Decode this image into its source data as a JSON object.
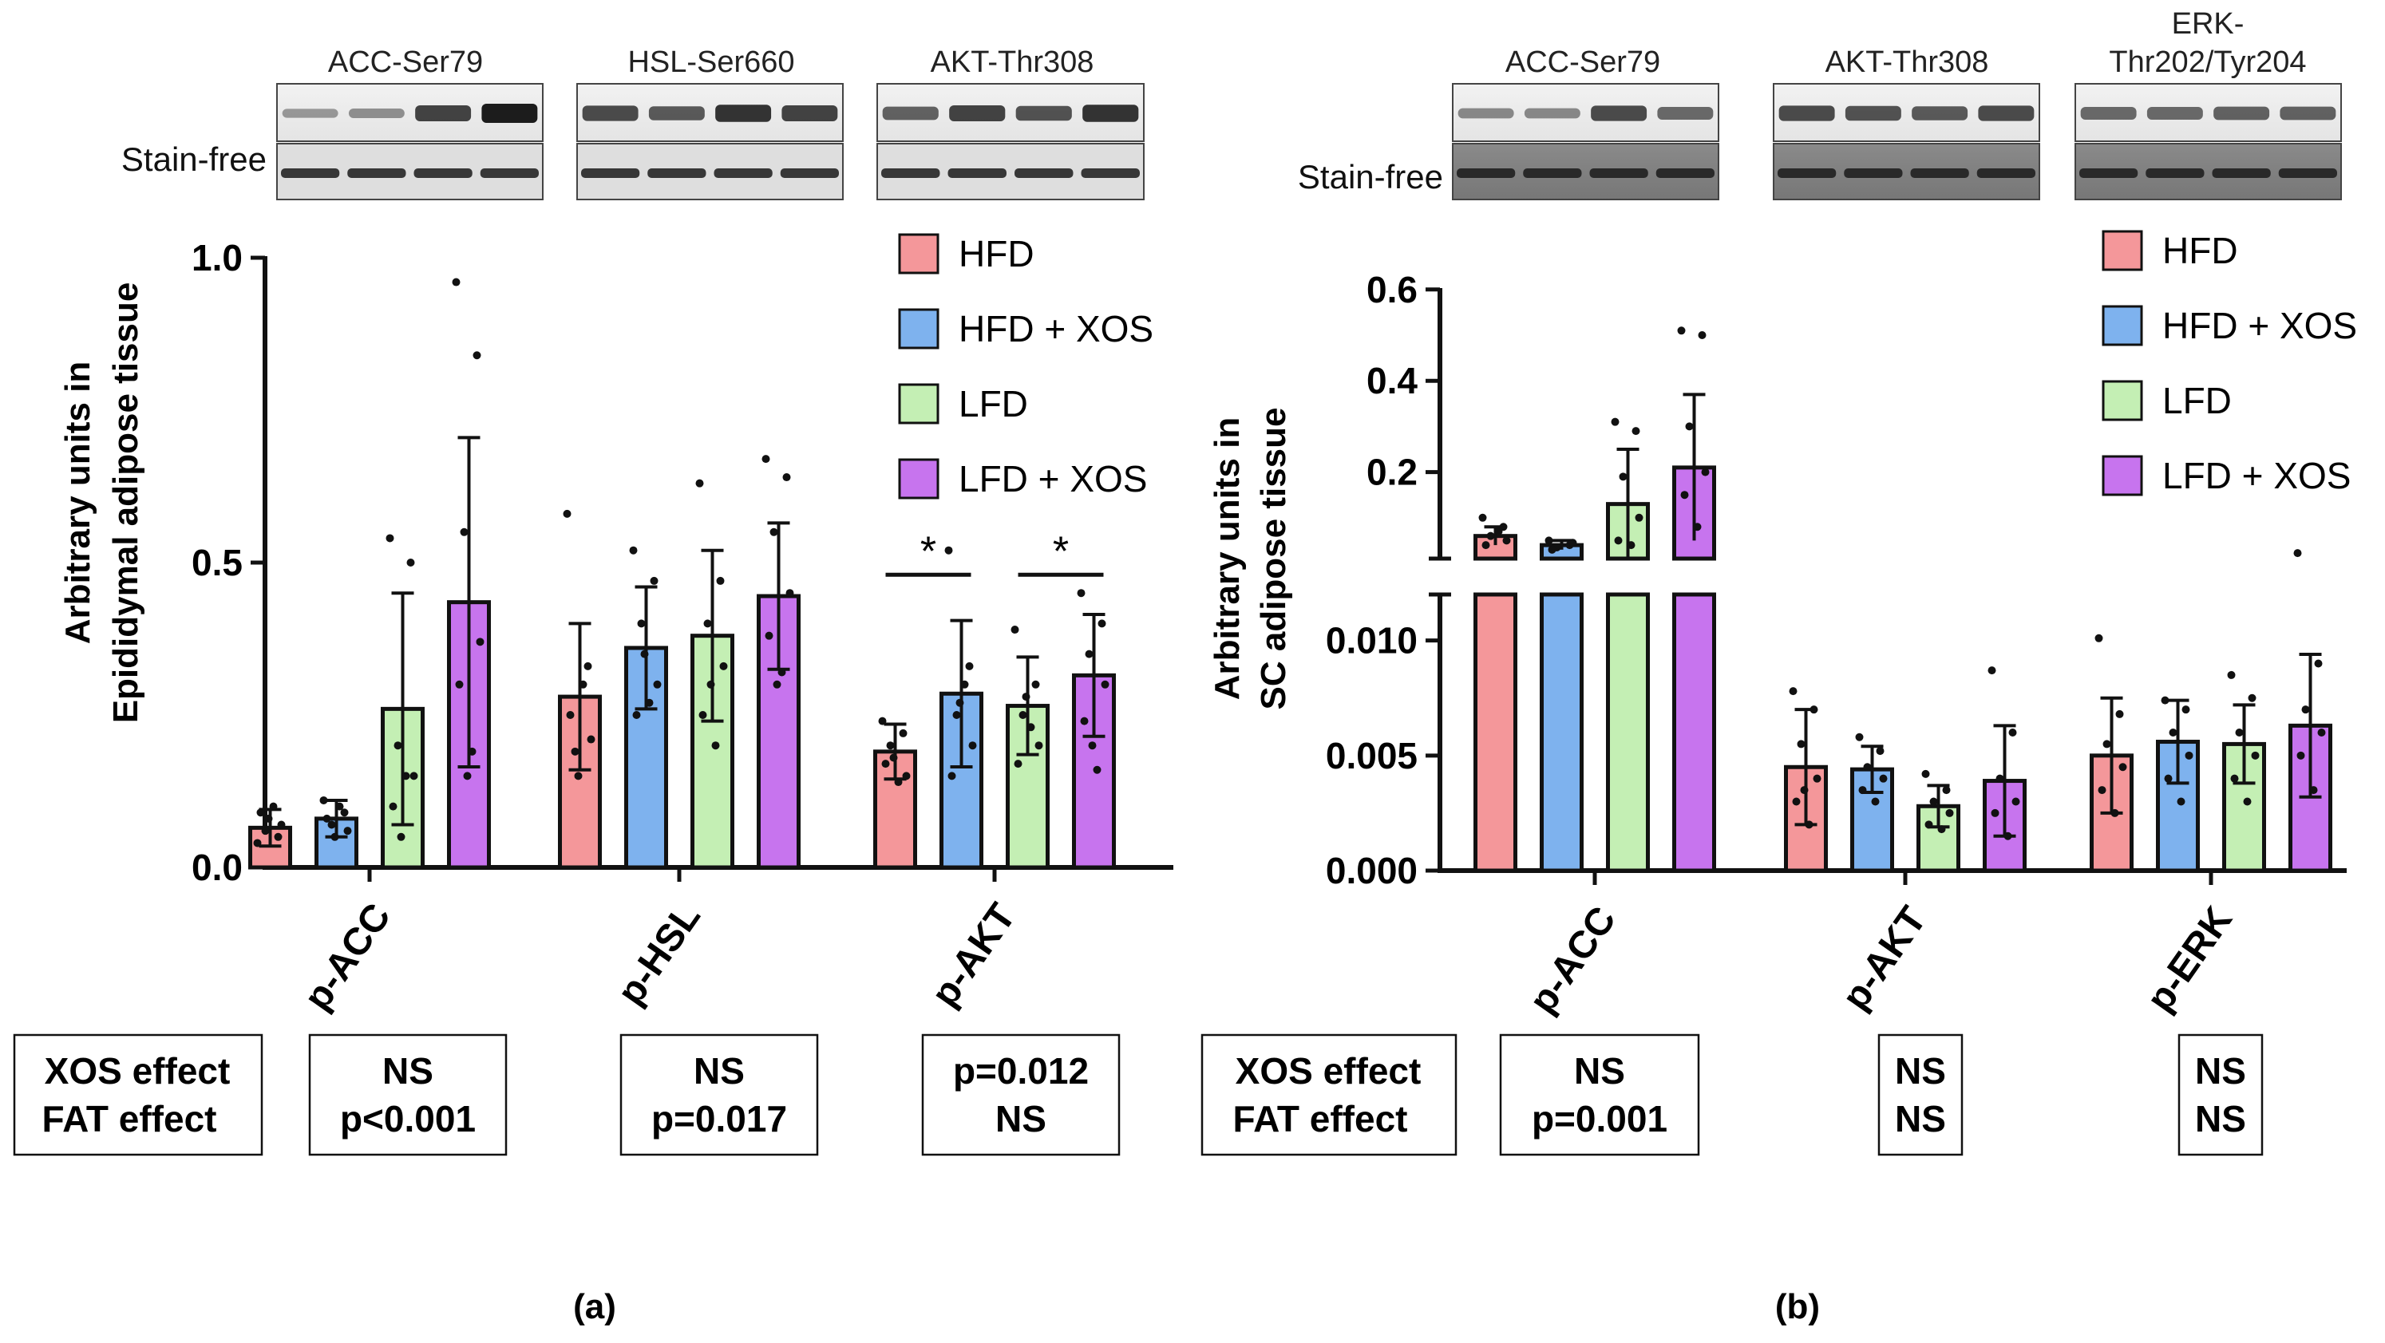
{
  "colors": {
    "HFD": "#f4979a",
    "HFD + XOS": "#7eb2ee",
    "LFD": "#c4efb4",
    "LFD + XOS": "#c774ee",
    "frame": "#111111"
  },
  "legend": [
    "HFD",
    "HFD + XOS",
    "LFD",
    "LFD + XOS"
  ],
  "panel_a": {
    "caption": "(a)",
    "ylabel_line1": "Arbitrary units in",
    "ylabel_line2": "Epididymal adipose tissue",
    "blots": [
      {
        "label": "ACC-Ser79",
        "bands": [
          0.2,
          0.25,
          0.75,
          1.0
        ]
      },
      {
        "label": "HSL-Ser660",
        "bands": [
          0.7,
          0.6,
          0.85,
          0.75
        ]
      },
      {
        "label": "AKT-Thr308",
        "bands": [
          0.55,
          0.75,
          0.65,
          0.85
        ]
      }
    ],
    "stain_free_label": "Stain-free",
    "effects_header": {
      "xos": "XOS effect",
      "fat": "FAT effect"
    },
    "effects": [
      {
        "xos": "NS",
        "fat": "p<0.001"
      },
      {
        "xos": "NS",
        "fat": "p=0.017"
      },
      {
        "xos": "p=0.012",
        "fat": "NS"
      }
    ]
  },
  "panel_b": {
    "caption": "(b)",
    "ylabel_line1": "Arbitrary units in",
    "ylabel_line2": "SC adipose tissue",
    "blots": [
      {
        "label": "ACC-Ser79",
        "bands": [
          0.3,
          0.3,
          0.7,
          0.5
        ]
      },
      {
        "label": "AKT-Thr308",
        "bands": [
          0.7,
          0.65,
          0.6,
          0.7
        ]
      },
      {
        "label_line1": "ERK-",
        "label_line2": "Thr202/Tyr204",
        "bands": [
          0.5,
          0.5,
          0.55,
          0.55
        ]
      }
    ],
    "stain_free_label": "Stain-free",
    "effects_header": {
      "xos": "XOS effect",
      "fat": "FAT effect"
    },
    "effects": [
      {
        "xos": "NS",
        "fat": "p=0.001"
      },
      {
        "xos": "NS",
        "fat": "NS"
      },
      {
        "xos": "NS",
        "fat": "NS"
      }
    ]
  },
  "chart_data": [
    {
      "type": "bar",
      "panel": "a",
      "title": "",
      "ylabel": "Arbitrary units in Epididymal adipose tissue",
      "xlabel": "",
      "categories": [
        "p-ACC",
        "p-HSL",
        "p-AKT"
      ],
      "ylim": [
        0,
        1.0
      ],
      "yticks": [
        "0.0",
        "0.5",
        "1.0"
      ],
      "series": [
        {
          "name": "HFD",
          "values": [
            0.065,
            0.28,
            0.19
          ],
          "sd": [
            0.03,
            0.12,
            0.045
          ],
          "points": [
            [
              0.04,
              0.05,
              0.06,
              0.07,
              0.09,
              0.1,
              0.08
            ],
            [
              0.58,
              0.33,
              0.19,
              0.21,
              0.25,
              0.3,
              0.15
            ],
            [
              0.24,
              0.22,
              0.2,
              0.15,
              0.17,
              0.14,
              0.18
            ]
          ]
        },
        {
          "name": "HFD + XOS",
          "values": [
            0.08,
            0.36,
            0.285
          ],
          "sd": [
            0.03,
            0.1,
            0.12
          ],
          "points": [
            [
              0.11,
              0.09,
              0.07,
              0.06,
              0.08,
              0.1,
              0.05
            ],
            [
              0.52,
              0.47,
              0.4,
              0.3,
              0.25,
              0.27,
              0.35
            ],
            [
              0.52,
              0.33,
              0.25,
              0.2,
              0.15,
              0.3,
              0.27
            ]
          ]
        },
        {
          "name": "LFD",
          "values": [
            0.26,
            0.38,
            0.265
          ],
          "sd": [
            0.19,
            0.14,
            0.08
          ],
          "points": [
            [
              0.54,
              0.5,
              0.2,
              0.15,
              0.1,
              0.15,
              0.05
            ],
            [
              0.63,
              0.47,
              0.4,
              0.33,
              0.25,
              0.2,
              0.3
            ],
            [
              0.39,
              0.3,
              0.25,
              0.2,
              0.17,
              0.23,
              0.28
            ]
          ]
        },
        {
          "name": "LFD + XOS",
          "values": [
            0.435,
            0.445,
            0.315
          ],
          "sd": [
            0.27,
            0.12,
            0.1
          ],
          "points": [
            [
              0.96,
              0.84,
              0.55,
              0.37,
              0.3,
              0.19,
              0.15
            ],
            [
              0.67,
              0.64,
              0.55,
              0.45,
              0.38,
              0.32,
              0.3
            ],
            [
              0.45,
              0.4,
              0.35,
              0.3,
              0.24,
              0.16,
              0.2
            ]
          ]
        }
      ],
      "annotations": [
        {
          "text": "*",
          "category": "p-AKT",
          "between": [
            "HFD",
            "HFD + XOS"
          ],
          "y": 0.48
        },
        {
          "text": "*",
          "category": "p-AKT",
          "between": [
            "LFD",
            "LFD + XOS"
          ],
          "y": 0.48
        }
      ]
    },
    {
      "type": "bar",
      "panel": "b",
      "title": "",
      "ylabel": "Arbitrary units in SC adipose tissue",
      "xlabel": "",
      "axis_break": true,
      "categories": [
        "p-ACC",
        "p-AKT",
        "p-ERK"
      ],
      "ylim_lower": [
        0,
        0.012
      ],
      "ylim_upper": [
        0,
        0.6
      ],
      "yticks_lower": [
        "0.000",
        "0.005",
        "0.010"
      ],
      "yticks_upper": [
        "0.2",
        "0.4",
        "0.6"
      ],
      "series": [
        {
          "name": "HFD",
          "values": [
            0.06,
            0.0045,
            0.005
          ],
          "sd": [
            0.02,
            0.0025,
            0.0025
          ],
          "points": [
            [
              0.1,
              0.08,
              0.06,
              0.05,
              0.04,
              0.07
            ],
            [
              0.0078,
              0.007,
              0.0055,
              0.004,
              0.003,
              0.002,
              0.0035
            ],
            [
              0.0101,
              0.0068,
              0.0055,
              0.0045,
              0.0035,
              0.0025
            ]
          ]
        },
        {
          "name": "HFD + XOS",
          "values": [
            0.04,
            0.0044,
            0.0056
          ],
          "sd": [
            0.01,
            0.001,
            0.0018
          ],
          "points": [
            [
              0.05,
              0.04,
              0.035,
              0.045,
              0.03
            ],
            [
              0.0058,
              0.0052,
              0.0045,
              0.004,
              0.0035,
              0.003
            ],
            [
              0.0074,
              0.007,
              0.006,
              0.005,
              0.004,
              0.003
            ]
          ]
        },
        {
          "name": "LFD",
          "values": [
            0.13,
            0.0028,
            0.0055
          ],
          "sd": [
            0.12,
            0.0009,
            0.0017
          ],
          "points": [
            [
              0.31,
              0.29,
              0.19,
              0.1,
              0.05,
              0.04
            ],
            [
              0.0042,
              0.0035,
              0.003,
              0.0025,
              0.002,
              0.0018
            ],
            [
              0.0085,
              0.0075,
              0.006,
              0.005,
              0.004,
              0.003
            ]
          ]
        },
        {
          "name": "LFD + XOS",
          "values": [
            0.21,
            0.0039,
            0.0063
          ],
          "sd": [
            0.16,
            0.0024,
            0.0031
          ],
          "points": [
            [
              0.51,
              0.5,
              0.3,
              0.2,
              0.15,
              0.08
            ],
            [
              0.0087,
              0.006,
              0.004,
              0.003,
              0.0025,
              0.0015
            ],
            [
              0.0138,
              0.009,
              0.007,
              0.006,
              0.005,
              0.0035
            ]
          ]
        }
      ]
    }
  ]
}
